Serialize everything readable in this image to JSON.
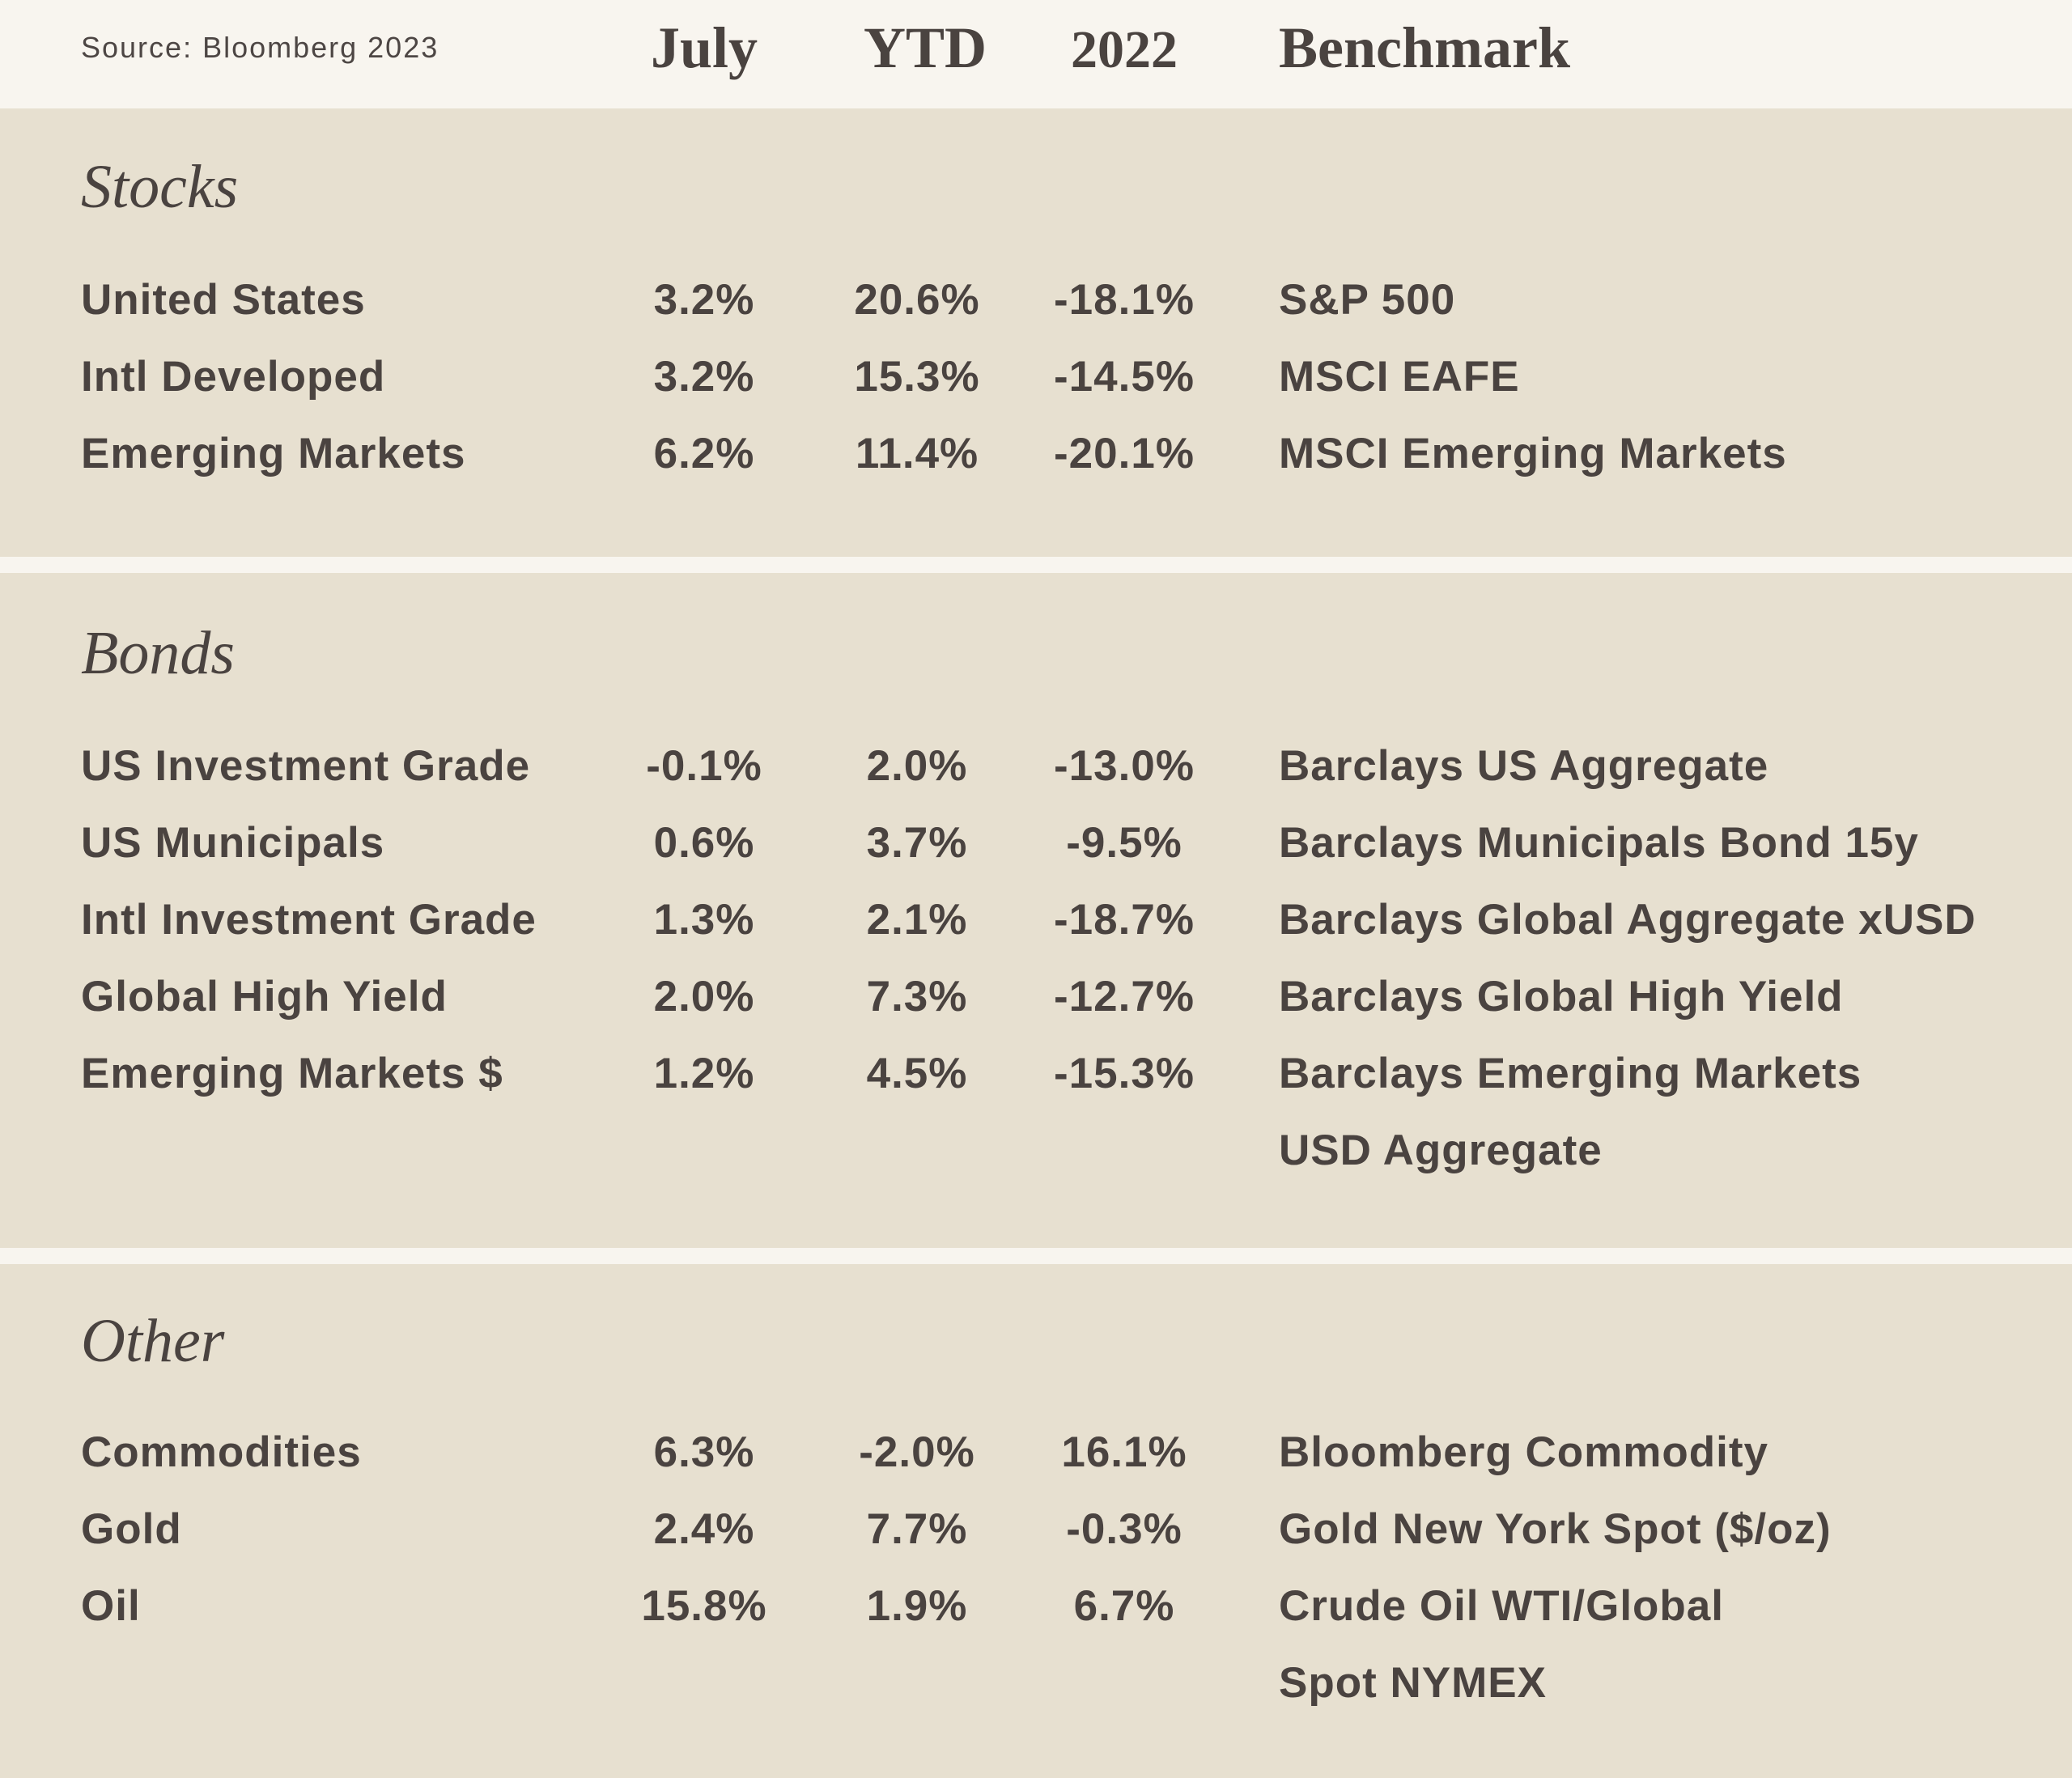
{
  "header": {
    "source": "Source:  Bloomberg 2023",
    "columns": {
      "july": "July",
      "ytd": "YTD",
      "y2022": "2022",
      "benchmark": "Benchmark"
    }
  },
  "sections": {
    "stocks": {
      "title": "Stocks",
      "rows": [
        {
          "name": "United States",
          "july": "3.2%",
          "ytd": "20.6%",
          "y2022": "-18.1%",
          "benchmark": "S&P 500"
        },
        {
          "name": "Intl Developed",
          "july": "3.2%",
          "ytd": "15.3%",
          "y2022": "-14.5%",
          "benchmark": "MSCI EAFE"
        },
        {
          "name": "Emerging Markets",
          "july": "6.2%",
          "ytd": "11.4%",
          "y2022": "-20.1%",
          "benchmark": "MSCI Emerging Markets"
        }
      ]
    },
    "bonds": {
      "title": "Bonds",
      "rows": [
        {
          "name": "US Investment Grade",
          "july": "-0.1%",
          "ytd": "2.0%",
          "y2022": "-13.0%",
          "benchmark": "Barclays US Aggregate"
        },
        {
          "name": "US Municipals",
          "july": "0.6%",
          "ytd": "3.7%",
          "y2022": "-9.5%",
          "benchmark": "Barclays Municipals Bond 15y"
        },
        {
          "name": "Intl Investment Grade",
          "july": "1.3%",
          "ytd": "2.1%",
          "y2022": "-18.7%",
          "benchmark": "Barclays Global Aggregate xUSD"
        },
        {
          "name": "Global High Yield",
          "july": "2.0%",
          "ytd": "7.3%",
          "y2022": "-12.7%",
          "benchmark": "Barclays Global High Yield"
        },
        {
          "name": "Emerging Markets $",
          "july": "1.2%",
          "ytd": "4.5%",
          "y2022": "-15.3%",
          "benchmark": "Barclays Emerging Markets",
          "benchmark_line2": "USD Aggregate"
        }
      ]
    },
    "other": {
      "title": "Other",
      "rows": [
        {
          "name": "Commodities",
          "july": "6.3%",
          "ytd": "-2.0%",
          "y2022": "16.1%",
          "benchmark": "Bloomberg Commodity"
        },
        {
          "name": "Gold",
          "july": "2.4%",
          "ytd": "7.7%",
          "y2022": "-0.3%",
          "benchmark": "Gold New York Spot ($/oz)"
        },
        {
          "name": "Oil",
          "july": "15.8%",
          "ytd": "1.9%",
          "y2022": "6.7%",
          "benchmark": "Crude Oil WTI/Global",
          "benchmark_line2": "Spot NYMEX"
        }
      ]
    }
  },
  "colors": {
    "page_background": "#f8f5ef",
    "section_background": "#e7e0d0",
    "text": "#4a4340"
  }
}
